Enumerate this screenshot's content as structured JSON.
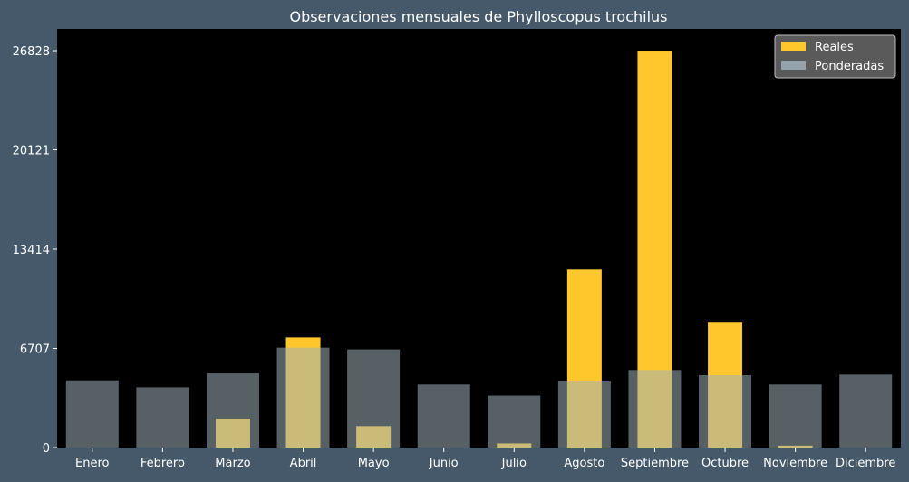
{
  "chart_data": {
    "type": "bar",
    "title": "Observaciones mensuales de Phylloscopus trochilus",
    "xlabel": "",
    "ylabel": "",
    "categories": [
      "Enero",
      "Febrero",
      "Marzo",
      "Abril",
      "Mayo",
      "Junio",
      "Julio",
      "Agosto",
      "Septiembre",
      "Octubre",
      "Noviembre",
      "Diciembre"
    ],
    "series": [
      {
        "name": "Reales",
        "color": "#ffc72c",
        "values": [
          0,
          0,
          1950,
          7450,
          1450,
          0,
          280,
          12050,
          26828,
          8500,
          130,
          0
        ]
      },
      {
        "name": "Ponderadas",
        "color": "#9fb0b8",
        "opacity": 0.55,
        "values": [
          4550,
          4080,
          5020,
          6760,
          6640,
          4270,
          3520,
          4470,
          5250,
          4900,
          4270,
          4940
        ]
      }
    ],
    "yticks": [
      "0",
      "6707",
      "13414",
      "20121",
      "26828"
    ],
    "ylim": [
      0,
      28300
    ],
    "grid": false,
    "legend": "top-right",
    "plot_background": "#000000",
    "figure_background": "#45596a",
    "text_color": "#ffffff"
  }
}
